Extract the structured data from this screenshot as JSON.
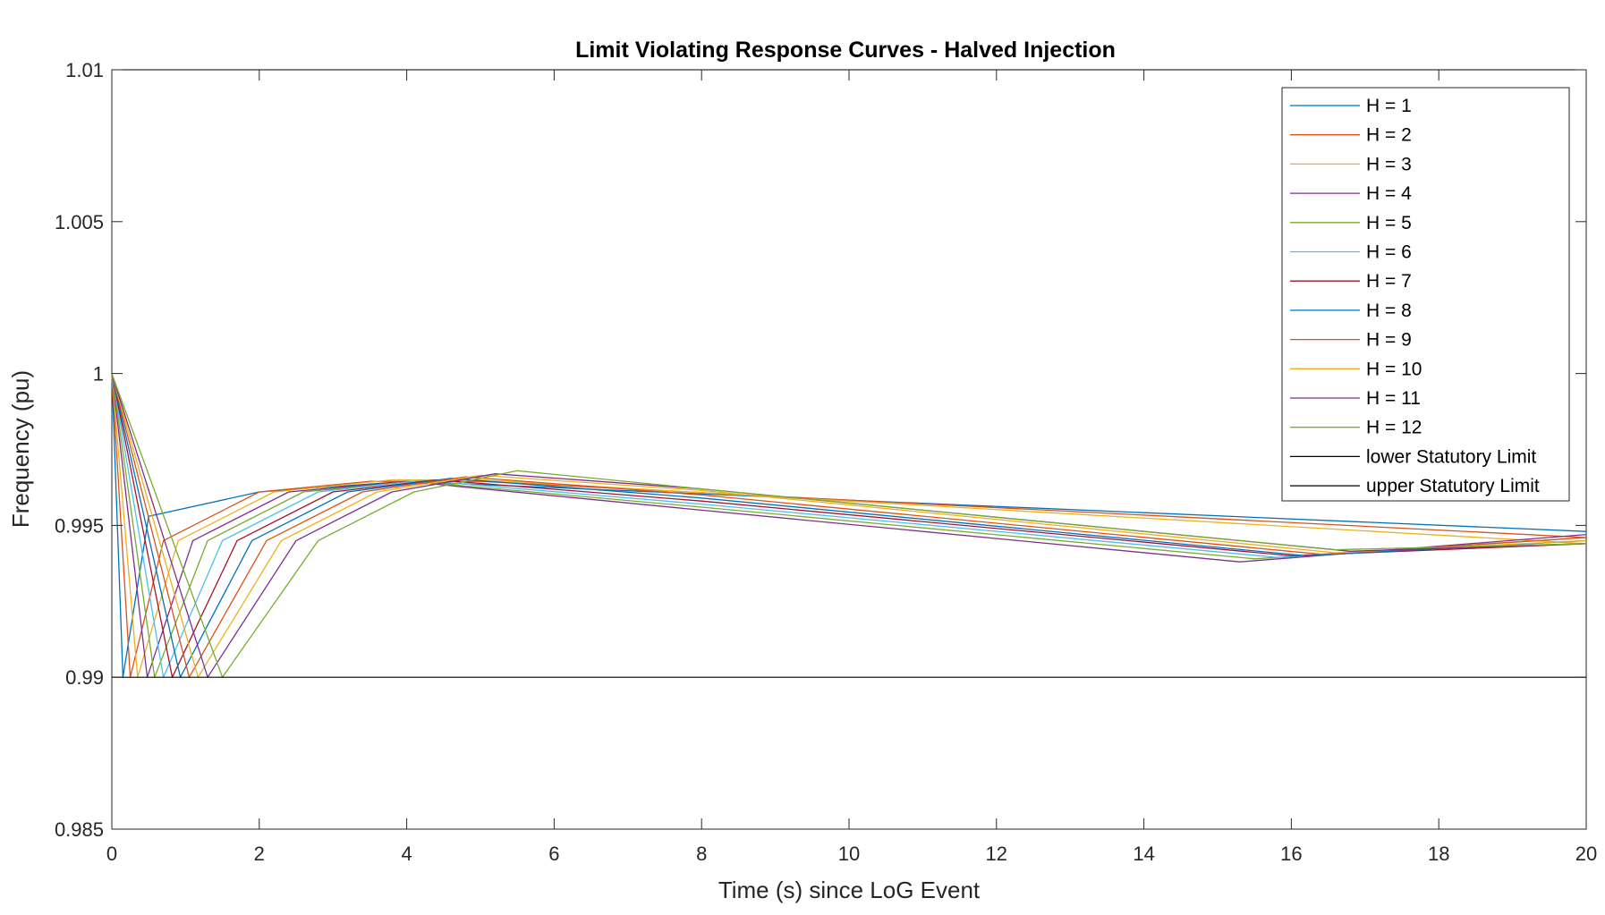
{
  "chart_data": {
    "type": "line",
    "title": "Limit Violating Response Curves - Halved Injection",
    "xlabel": "Time (s) since LoG Event",
    "ylabel": "Frequency (pu)",
    "xlim": [
      0,
      20
    ],
    "ylim": [
      0.985,
      1.01
    ],
    "xticks": [
      0,
      2,
      4,
      6,
      8,
      10,
      12,
      14,
      16,
      18,
      20
    ],
    "xtick_labels": [
      "0",
      "2",
      "4",
      "6",
      "8",
      "10",
      "12",
      "14",
      "16",
      "18",
      "20"
    ],
    "yticks": [
      0.985,
      0.99,
      0.995,
      1,
      1.005,
      1.01
    ],
    "ytick_labels": [
      "0.985",
      "0.99",
      "0.995",
      "1",
      "1.005",
      "1.01"
    ],
    "grid": false,
    "legend_position": "top-right",
    "series": [
      {
        "name": "H = 1",
        "color": "#0072BD",
        "x": [
          0,
          0.15,
          0.5,
          2,
          4,
          20
        ],
        "y": [
          1,
          0.99,
          0.9953,
          0.9961,
          0.99645,
          0.9948
        ]
      },
      {
        "name": "H = 2",
        "color": "#D95319",
        "x": [
          0,
          0.25,
          0.7,
          2,
          3.5,
          5,
          20
        ],
        "y": [
          1,
          0.99,
          0.9945,
          0.9961,
          0.99645,
          0.99645,
          0.9946
        ]
      },
      {
        "name": "H = 3",
        "color": "#EDB120",
        "x": [
          0,
          0.35,
          0.9,
          2.2,
          3.8,
          5,
          20
        ],
        "y": [
          1,
          0.99,
          0.9945,
          0.9961,
          0.9965,
          0.9965,
          0.9944
        ]
      },
      {
        "name": "H = 4",
        "color": "#7E2F8E",
        "x": [
          0,
          0.48,
          1.1,
          2.4,
          4,
          8,
          15.3,
          20
        ],
        "y": [
          1,
          0.99,
          0.9945,
          0.9961,
          0.99645,
          0.9955,
          0.9938,
          0.9947
        ]
      },
      {
        "name": "H = 5",
        "color": "#77AC30",
        "x": [
          0,
          0.58,
          1.3,
          2.6,
          4.1,
          8,
          15.5,
          20
        ],
        "y": [
          1,
          0.99,
          0.9945,
          0.9961,
          0.99645,
          0.9956,
          0.9939,
          0.9946
        ]
      },
      {
        "name": "H = 6",
        "color": "#4DBEEE",
        "x": [
          0,
          0.7,
          1.5,
          2.8,
          4.2,
          8,
          15.8,
          20
        ],
        "y": [
          1,
          0.99,
          0.9945,
          0.9961,
          0.99648,
          0.9957,
          0.99395,
          0.9945
        ]
      },
      {
        "name": "H = 7",
        "color": "#A2142F",
        "x": [
          0,
          0.82,
          1.7,
          3.0,
          4.4,
          8,
          16,
          20
        ],
        "y": [
          1,
          0.99,
          0.9945,
          0.9961,
          0.9965,
          0.9958,
          0.994,
          0.9944
        ]
      },
      {
        "name": "H = 8",
        "color": "#0072BD",
        "x": [
          0,
          0.93,
          1.9,
          3.2,
          4.6,
          8,
          16.2,
          20
        ],
        "y": [
          1,
          0.99,
          0.9945,
          0.9961,
          0.99655,
          0.9959,
          0.994,
          0.9945
        ]
      },
      {
        "name": "H = 9",
        "color": "#D95319",
        "x": [
          0,
          1.05,
          2.1,
          3.4,
          4.8,
          8,
          16.4,
          20
        ],
        "y": [
          1,
          0.99,
          0.9945,
          0.9961,
          0.9966,
          0.996,
          0.99405,
          0.9946
        ]
      },
      {
        "name": "H = 10",
        "color": "#EDB120",
        "x": [
          0,
          1.17,
          2.3,
          3.6,
          5.0,
          8,
          16.6,
          20
        ],
        "y": [
          1,
          0.99,
          0.9945,
          0.9961,
          0.99665,
          0.99615,
          0.9941,
          0.9945
        ]
      },
      {
        "name": "H = 11",
        "color": "#7E2F8E",
        "x": [
          0,
          1.3,
          2.5,
          3.8,
          5.2,
          8,
          16.8,
          20
        ],
        "y": [
          1,
          0.99,
          0.9945,
          0.9961,
          0.9967,
          0.9962,
          0.99415,
          0.9944
        ]
      },
      {
        "name": "H = 12",
        "color": "#77AC30",
        "x": [
          0,
          1.5,
          2.8,
          4.1,
          5.5,
          8,
          16.6,
          20
        ],
        "y": [
          1,
          0.99,
          0.9945,
          0.9961,
          0.9968,
          0.9962,
          0.9942,
          0.9944
        ]
      },
      {
        "name": "lower Statutory Limit",
        "color": "#000000",
        "x": [
          0,
          20
        ],
        "y": [
          0.99,
          0.99
        ]
      },
      {
        "name": "upper Statutory Limit",
        "color": "#000000",
        "x": [
          0,
          20
        ],
        "y": [
          1.01,
          1.01
        ]
      }
    ]
  }
}
